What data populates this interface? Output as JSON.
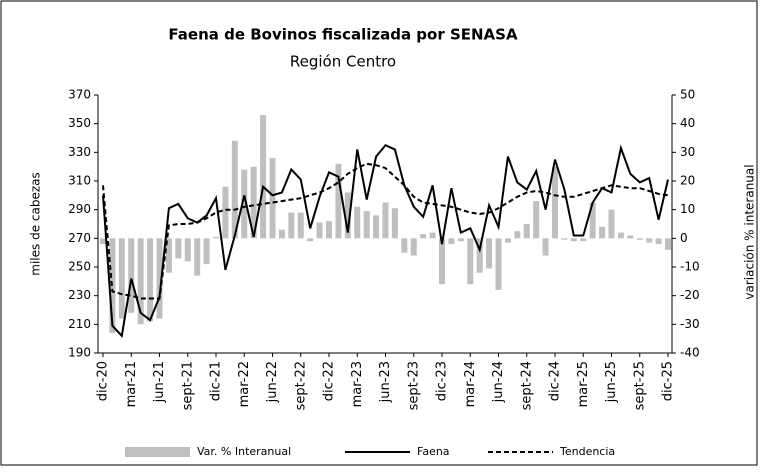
{
  "chart_data": {
    "type": "bar-line",
    "title": "Faena de Bovinos fiscalizada por SENASA",
    "subtitle": "Región Centro",
    "y_label": "miles de cabezas",
    "y2_label": "variación % interanual",
    "categories": [
      "dic-20",
      null,
      null,
      "mar-21",
      null,
      null,
      "jun-21",
      null,
      null,
      "sept-21",
      null,
      null,
      "dic-21",
      null,
      null,
      "mar-22",
      null,
      null,
      "jun-22",
      null,
      null,
      "sept-22",
      null,
      null,
      "dic-22",
      null,
      null,
      "mar-23",
      null,
      null,
      "jun-23",
      null,
      null,
      "sept-23",
      null,
      null,
      "dic-23",
      null,
      null,
      "mar-24",
      null,
      null,
      "jun-24",
      null,
      null,
      "sept-24",
      null,
      null,
      "dic-24",
      null,
      null,
      "mar-25",
      null,
      null,
      "jun-25",
      null,
      null,
      "sept-25",
      null,
      null,
      "dic-25"
    ],
    "series": [
      {
        "name": "Var. % Interanual",
        "type": "bar",
        "axis": "y2",
        "color": "#bfbfbf",
        "values": [
          -2,
          -33,
          -28,
          -26,
          -30,
          -29,
          -28,
          -12,
          -7,
          -8,
          -13,
          -9,
          0.5,
          18,
          34,
          24,
          25,
          43,
          28,
          3,
          9,
          9,
          -1,
          5.5,
          6,
          26,
          16,
          11,
          9.5,
          8,
          12.5,
          10.5,
          -5,
          -6,
          1.5,
          2,
          -16,
          -2,
          -1,
          -16,
          -12,
          -10.5,
          -18,
          -1.5,
          2.5,
          5,
          13,
          -6,
          25,
          -0.5,
          -1,
          -1,
          12.5,
          4,
          10,
          2,
          1,
          -0.5,
          -1.5,
          -2,
          -4
        ]
      },
      {
        "name": "Faena",
        "type": "line",
        "color": "#000000",
        "dashed": false,
        "values": [
          300,
          209,
          202,
          242,
          218,
          213,
          229,
          291,
          294,
          284,
          281,
          286,
          298,
          248,
          272,
          300,
          271,
          306,
          300,
          302,
          318,
          311,
          277,
          299,
          316,
          313,
          274,
          332,
          297,
          327,
          335,
          332,
          307,
          292,
          285,
          307,
          266,
          305,
          274,
          277,
          262,
          293,
          278,
          327,
          309,
          304,
          317,
          290,
          325,
          304,
          272,
          272,
          295,
          305,
          302,
          333,
          315,
          309,
          312,
          283,
          311
        ]
      },
      {
        "name": "Tendencia",
        "type": "line",
        "color": "#000000",
        "dashed": true,
        "values": [
          307,
          233,
          231,
          230,
          228,
          228,
          228,
          279,
          280,
          280,
          281,
          284,
          288,
          290,
          290,
          292,
          293,
          294,
          295,
          296,
          297,
          298,
          300,
          302,
          305,
          309,
          315,
          319,
          322,
          321,
          319,
          313,
          307,
          299,
          295,
          294,
          293,
          292,
          290,
          288,
          287,
          288,
          291,
          295,
          299,
          302,
          303,
          302,
          300,
          299,
          299,
          301,
          303,
          305,
          307,
          306,
          305,
          305,
          303,
          301,
          300
        ]
      }
    ],
    "ylim": [
      190,
      370
    ],
    "yticks": [
      190,
      210,
      230,
      250,
      270,
      290,
      310,
      330,
      350,
      370
    ],
    "y2lim": [
      -40,
      50
    ],
    "y2ticks": [
      -40,
      -30,
      -20,
      -10,
      0,
      10,
      20,
      30,
      40,
      50
    ],
    "legend": "bottom",
    "grid": false
  }
}
